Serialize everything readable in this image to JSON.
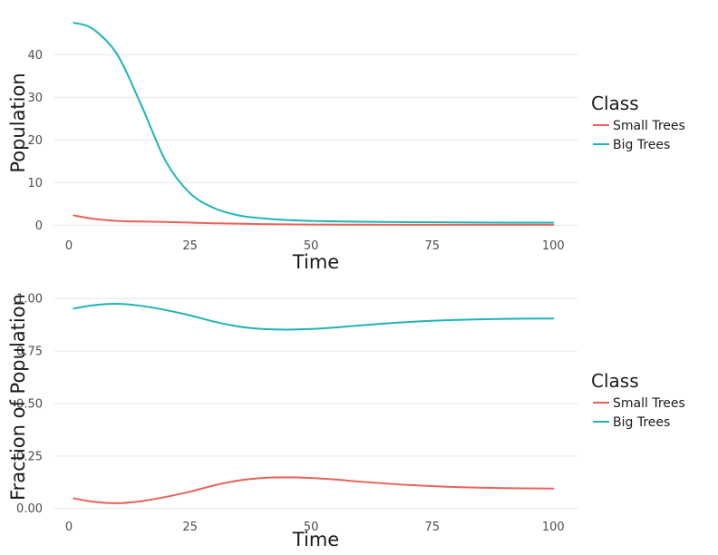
{
  "colors": {
    "small_trees": "#e8625a",
    "big_trees": "#1fb4b4"
  },
  "chart_data": [
    {
      "type": "line",
      "title": "",
      "xlabel": "Time",
      "ylabel": "Population",
      "xlim": [
        -3,
        105
      ],
      "ylim": [
        -1,
        49
      ],
      "x_ticks": [
        0,
        25,
        50,
        75,
        100
      ],
      "x_tick_labels": [
        "0",
        "25",
        "50",
        "75",
        "100"
      ],
      "y_ticks": [
        0,
        10,
        20,
        30,
        40
      ],
      "y_tick_labels": [
        "0",
        "10",
        "20",
        "30",
        "40"
      ],
      "grid": true,
      "legend": {
        "title": "Class",
        "position": "right",
        "entries": [
          "Small Trees",
          "Big Trees"
        ]
      },
      "x": [
        1,
        5,
        10,
        15,
        20,
        25,
        30,
        35,
        40,
        45,
        50,
        60,
        70,
        80,
        90,
        100
      ],
      "series": [
        {
          "name": "Small Trees",
          "values": [
            2.3,
            1.5,
            1.0,
            0.85,
            0.75,
            0.6,
            0.45,
            0.35,
            0.25,
            0.2,
            0.15,
            0.12,
            0.1,
            0.1,
            0.1,
            0.1
          ]
        },
        {
          "name": "Big Trees",
          "values": [
            47.5,
            46,
            40,
            28,
            15,
            7.5,
            4,
            2.3,
            1.6,
            1.2,
            1.0,
            0.8,
            0.7,
            0.65,
            0.6,
            0.6
          ]
        }
      ]
    },
    {
      "type": "line",
      "title": "",
      "xlabel": "Time",
      "ylabel": "Fraction of Population",
      "xlim": [
        -3,
        105
      ],
      "ylim": [
        -0.01,
        1.07
      ],
      "x_ticks": [
        0,
        25,
        50,
        75,
        100
      ],
      "x_tick_labels": [
        "0",
        "25",
        "50",
        "75",
        "100"
      ],
      "y_ticks": [
        0,
        0.25,
        0.5,
        0.75,
        1.0
      ],
      "y_tick_labels": [
        "0.00",
        "0.25",
        "0.50",
        "0.75",
        "1.00"
      ],
      "grid": true,
      "legend": {
        "title": "Class",
        "position": "right",
        "entries": [
          "Small Trees",
          "Big Trees"
        ]
      },
      "x": [
        1,
        5,
        10,
        15,
        20,
        25,
        30,
        35,
        40,
        45,
        50,
        55,
        60,
        70,
        80,
        90,
        100
      ],
      "series": [
        {
          "name": "Small Trees",
          "values": [
            0.048,
            0.032,
            0.025,
            0.035,
            0.055,
            0.08,
            0.11,
            0.133,
            0.145,
            0.148,
            0.145,
            0.138,
            0.128,
            0.112,
            0.102,
            0.097,
            0.095
          ]
        },
        {
          "name": "Big Trees",
          "values": [
            0.952,
            0.968,
            0.975,
            0.965,
            0.945,
            0.92,
            0.89,
            0.867,
            0.855,
            0.852,
            0.855,
            0.862,
            0.872,
            0.888,
            0.898,
            0.903,
            0.905
          ]
        }
      ]
    }
  ]
}
